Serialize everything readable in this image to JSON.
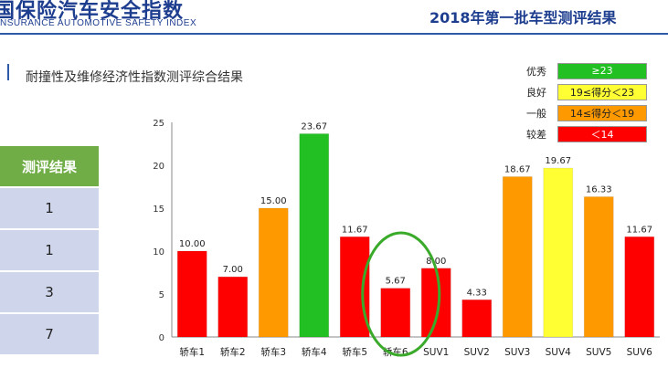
{
  "header": {
    "logo_cn": "国保险汽车安全指数",
    "logo_en": "NSURANCE AUTOMOTIVE SAFETY INDEX",
    "title": "2018年第一批车型测评结果"
  },
  "section": {
    "title": "耐撞性及维修经济性指数测评综合结果"
  },
  "results_table": {
    "header": "测评结果",
    "rows": [
      "1",
      "1",
      "3",
      "7"
    ]
  },
  "legend": [
    {
      "label": "优秀",
      "range": "≥23",
      "color": "#22c022",
      "text_color": "#ffffff"
    },
    {
      "label": "良好",
      "range": "19≤得分＜23",
      "color": "#ffff33",
      "text_color": "#222222"
    },
    {
      "label": "一般",
      "range": "14≤得分＜19",
      "color": "#ff9900",
      "text_color": "#222222"
    },
    {
      "label": "较差",
      "range": "＜14",
      "color": "#ff0000",
      "text_color": "#ffffff"
    }
  ],
  "chart_data": {
    "type": "bar",
    "categories": [
      "轿车1",
      "轿车2",
      "轿车3",
      "轿车4",
      "轿车5",
      "轿车6",
      "SUV1",
      "SUV2",
      "SUV3",
      "SUV4",
      "SUV5",
      "SUV6"
    ],
    "values": [
      10.0,
      7.0,
      15.0,
      23.67,
      11.67,
      5.67,
      8.0,
      4.33,
      18.67,
      19.67,
      16.33,
      11.67
    ],
    "value_labels": [
      "10.00",
      "7.00",
      "15.00",
      "23.67",
      "11.67",
      "5.67",
      "8.00",
      "4.33",
      "18.67",
      "19.67",
      "16.33",
      "11.67"
    ],
    "colors": [
      "#ff0000",
      "#ff0000",
      "#ff9900",
      "#22c022",
      "#ff0000",
      "#ff0000",
      "#ff0000",
      "#ff0000",
      "#ff9900",
      "#ffff33",
      "#ff9900",
      "#ff0000"
    ],
    "yticks": [
      "0",
      "5",
      "10",
      "15",
      "20",
      "25"
    ],
    "ylim": [
      0,
      25
    ],
    "grid": false,
    "highlight_category": "轿车6",
    "highlight_color": "#3aaa2a"
  }
}
